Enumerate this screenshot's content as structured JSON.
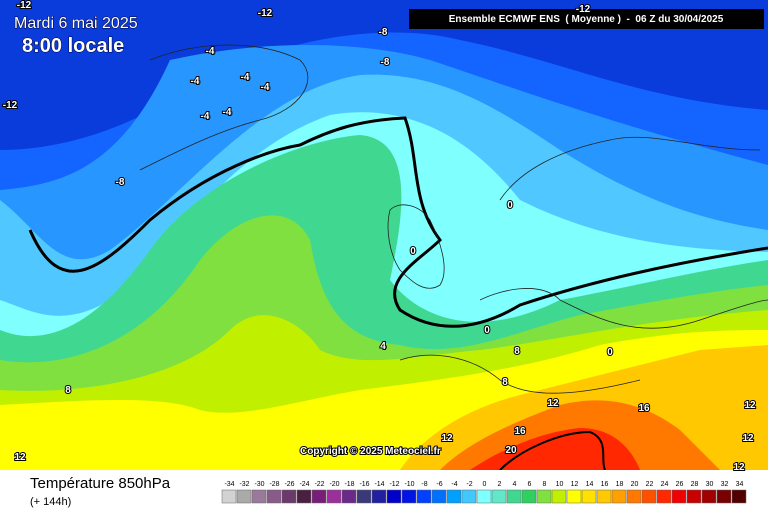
{
  "header": {
    "date": "Mardi 6 mai 2025",
    "time": "8:00 locale",
    "run": "Ensemble ECMWF ENS  ( Moyenne )  -  06 Z du 30/04/2025"
  },
  "copyright": "Copyright © 2025 Meteociel.fr",
  "footer": {
    "title": "Température 850hPa",
    "subtitle": "(+ 144h)"
  },
  "legend": {
    "values": [
      -34,
      -32,
      -30,
      -28,
      -26,
      -24,
      -22,
      -20,
      -18,
      -16,
      -14,
      -12,
      -10,
      -8,
      -6,
      -4,
      -2,
      0,
      2,
      4,
      6,
      8,
      10,
      12,
      14,
      16,
      18,
      20,
      22,
      24,
      26,
      28,
      30,
      32,
      34
    ],
    "colors": [
      "#d2d2d2",
      "#aaaaaa",
      "#9a7a9a",
      "#8a5a8a",
      "#6a3a6a",
      "#4a2040",
      "#781e78",
      "#9b2f9b",
      "#6a2a8a",
      "#3a3a7a",
      "#2020a0",
      "#0000c8",
      "#0014e6",
      "#0040ff",
      "#0070ff",
      "#00a0ff",
      "#40c8ff",
      "#80ffff",
      "#60e8c8",
      "#40d890",
      "#30d060",
      "#80e040",
      "#c0f000",
      "#ffff00",
      "#ffe000",
      "#ffc800",
      "#ffa000",
      "#ff7800",
      "#ff5000",
      "#ff2800",
      "#f00000",
      "#c80000",
      "#a00000",
      "#780000",
      "#500000"
    ]
  },
  "contour_labels": [
    "-12",
    "-12",
    "-12",
    "-12",
    "-8",
    "-8",
    "-8",
    "-4",
    "-4",
    "-4",
    "-4",
    "-4",
    "-4",
    "0",
    "0",
    "0",
    "0",
    "4",
    "8",
    "8",
    "8",
    "12",
    "12",
    "12",
    "12",
    "12",
    "12",
    "16",
    "16",
    "20"
  ]
}
